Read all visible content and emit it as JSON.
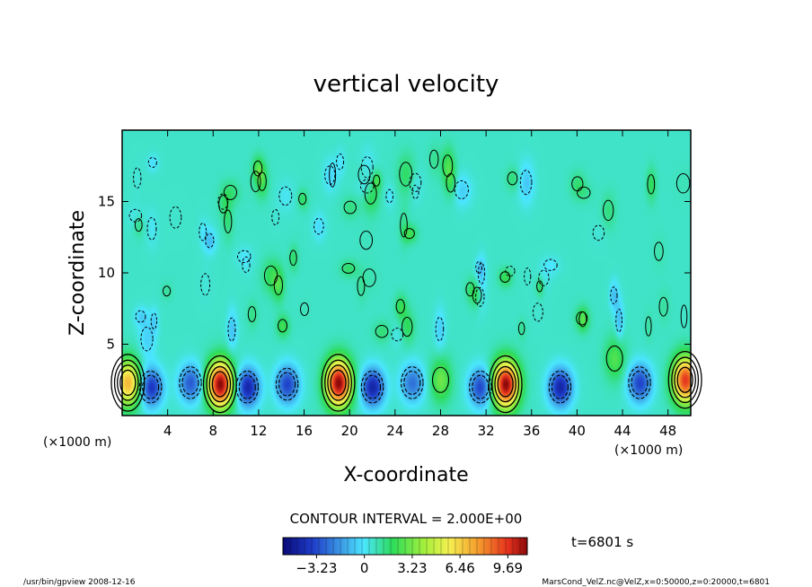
{
  "chart_data": {
    "type": "heatmap",
    "title": "vertical velocity",
    "xlabel": "X-coordinate",
    "ylabel": "Z-coordinate",
    "x_unit_left": "(×1000 m)",
    "x_unit_right": "(×1000 m)",
    "xlim": [
      0,
      50
    ],
    "ylim": [
      0,
      20
    ],
    "x_ticks": [
      4,
      8,
      12,
      16,
      20,
      24,
      28,
      32,
      36,
      40,
      44,
      48
    ],
    "y_ticks": [
      5,
      10,
      15
    ],
    "contour_interval_label": "CONTOUR INTERVAL = 2.000E+00",
    "colorbar": {
      "min": -5.5,
      "max": 11.0,
      "tick_values": [
        -3.23,
        0,
        3.23,
        6.46,
        9.69
      ],
      "tick_labels": [
        "−3.23",
        "0",
        "3.23",
        "6.46",
        "9.69"
      ]
    },
    "time_label": "t=6801 s",
    "updraft_cores": [
      {
        "x": 0.5,
        "z": 2.3,
        "peak": 6.5
      },
      {
        "x": 8.6,
        "z": 2.2,
        "peak": 10.5
      },
      {
        "x": 19.0,
        "z": 2.3,
        "peak": 10.5
      },
      {
        "x": 33.7,
        "z": 2.2,
        "peak": 10.5
      },
      {
        "x": 49.5,
        "z": 2.5,
        "peak": 9.0
      }
    ],
    "downdraft_cores": [
      {
        "x": 2.5,
        "z": 2.0,
        "peak": -4.5
      },
      {
        "x": 6.0,
        "z": 2.3,
        "peak": -3.5
      },
      {
        "x": 11.0,
        "z": 2.0,
        "peak": -5.0
      },
      {
        "x": 14.5,
        "z": 2.2,
        "peak": -4.0
      },
      {
        "x": 22.0,
        "z": 2.0,
        "peak": -5.0
      },
      {
        "x": 25.5,
        "z": 2.3,
        "peak": -3.0
      },
      {
        "x": 31.5,
        "z": 2.0,
        "peak": -4.0
      },
      {
        "x": 38.5,
        "z": 2.0,
        "peak": -5.0
      },
      {
        "x": 45.5,
        "z": 2.3,
        "peak": -4.0
      }
    ],
    "minor_updrafts": [
      {
        "x": 28.0,
        "z": 2.5,
        "peak": 2.5
      },
      {
        "x": 43.3,
        "z": 4.0,
        "peak": 2.0
      }
    ]
  },
  "footer": {
    "left": "/usr/bin/gpview   2008-12-16",
    "right": "MarsCond_VelZ.nc@VelZ,x=0:50000,z=0:20000,t=6801"
  }
}
